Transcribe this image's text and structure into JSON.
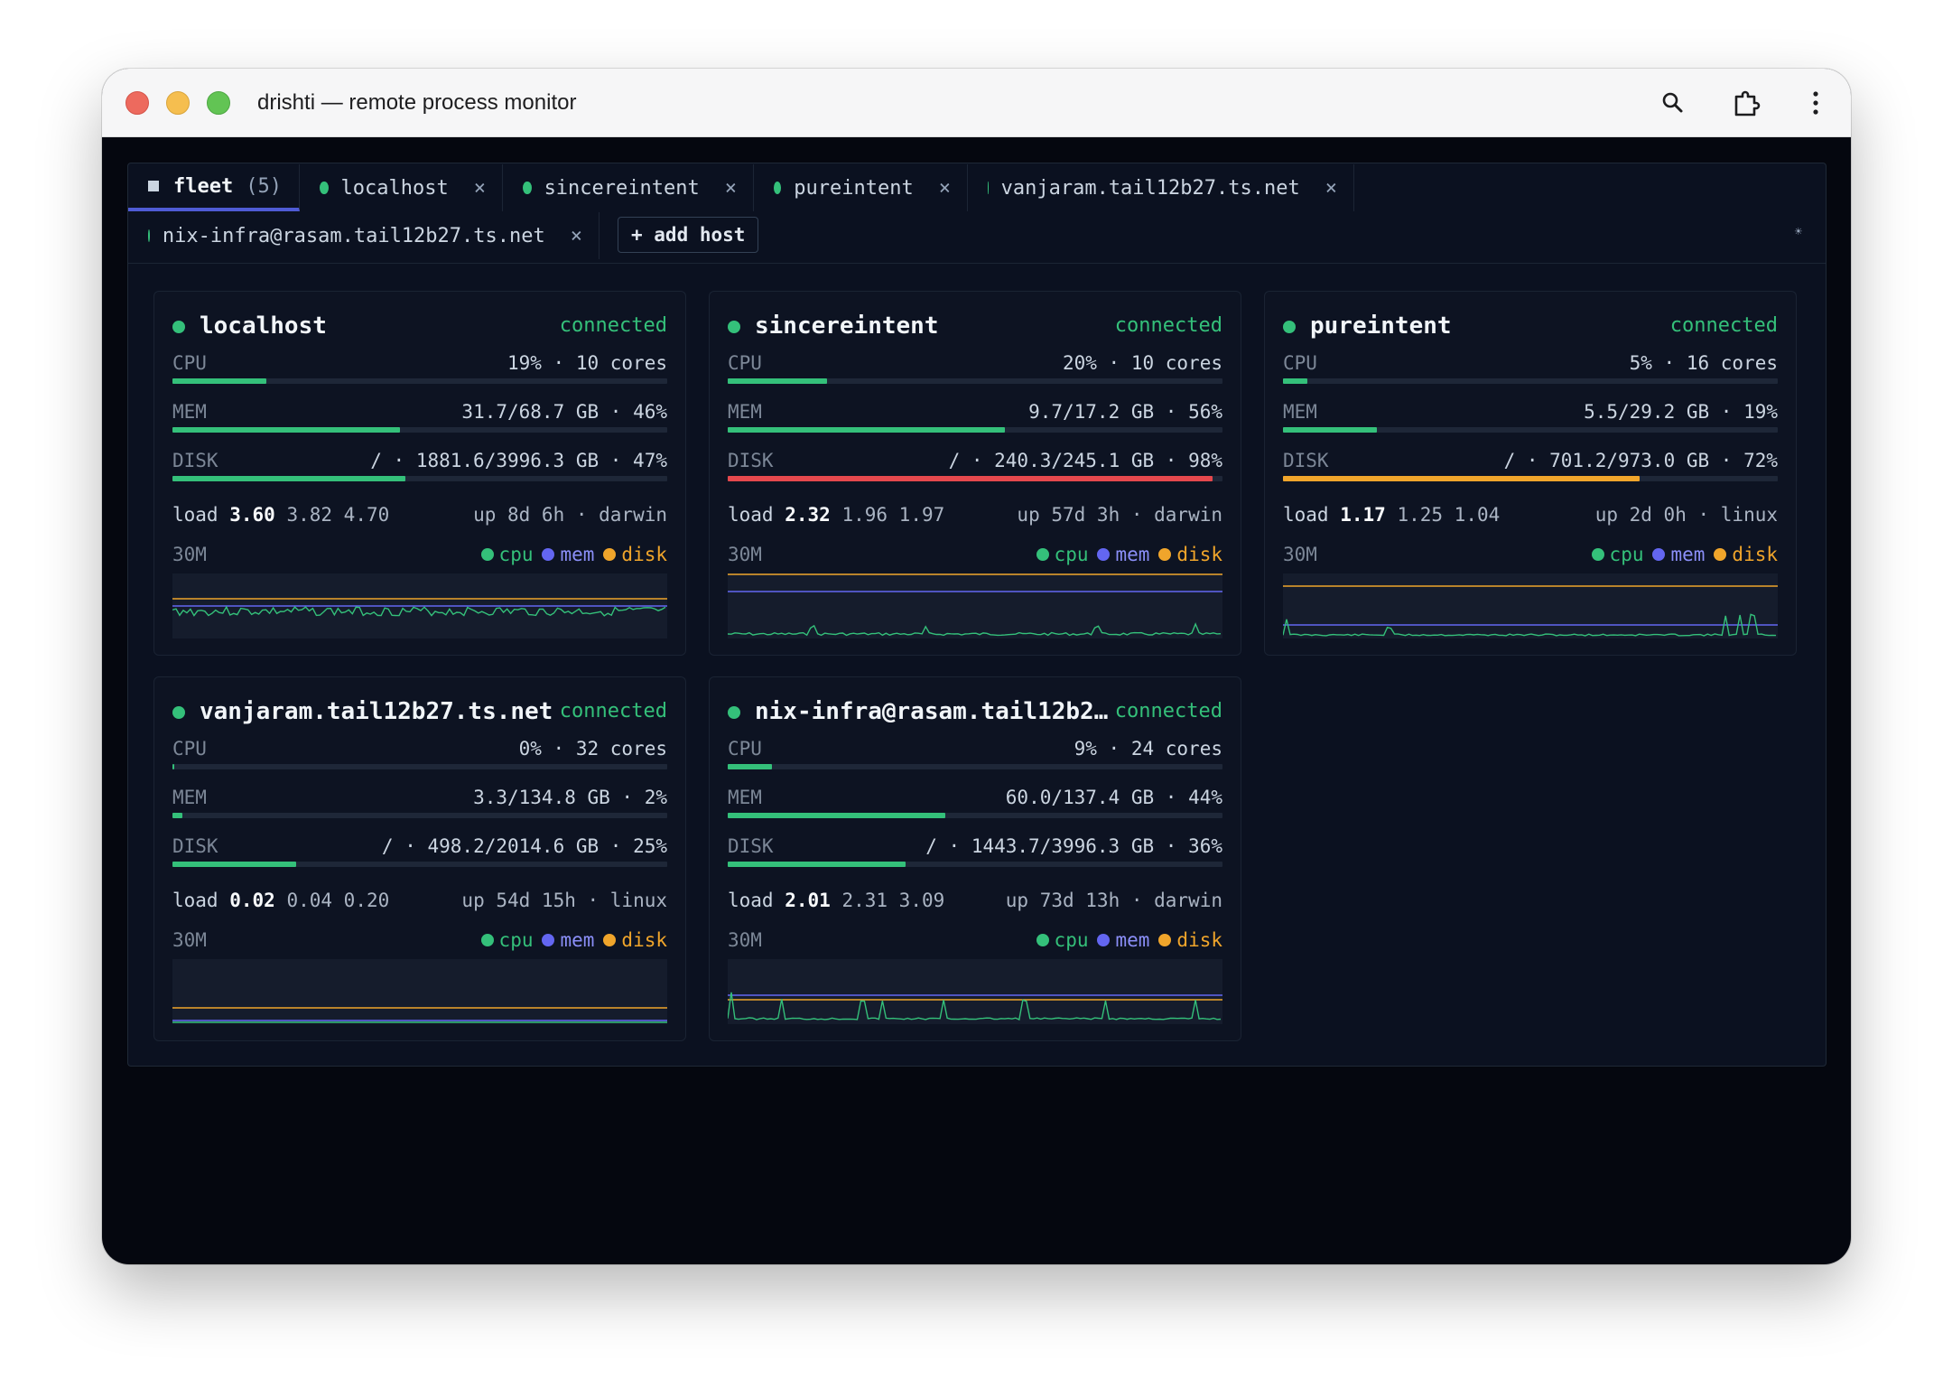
{
  "window": {
    "title": "drishti — remote process monitor"
  },
  "colors": {
    "ok": "#34c07a",
    "warn": "#f0a52b",
    "danger": "#e5484d",
    "cpu": "#34c07a",
    "mem": "#6366f1",
    "disk": "#f0a52b"
  },
  "tabs": {
    "fleet": {
      "label": "fleet",
      "count": "(5)"
    },
    "hosts": [
      {
        "label": "localhost",
        "close": "×"
      },
      {
        "label": "sincereintent",
        "close": "×"
      },
      {
        "label": "pureintent",
        "close": "×"
      },
      {
        "label": "vanjaram.tail12b27.ts.net",
        "close": "×"
      },
      {
        "label": "nix-infra@rasam.tail12b27.ts.net",
        "close": "×"
      }
    ],
    "add_host": "+ add host",
    "theme_icon": "☀"
  },
  "legend": {
    "cpu": "cpu",
    "mem": "mem",
    "disk": "disk"
  },
  "cards": [
    {
      "name": "localhost",
      "status": "connected",
      "cpu": {
        "label": "CPU",
        "value": "19% · 10 cores",
        "fraction": 0.19,
        "level": "ok"
      },
      "mem": {
        "label": "MEM",
        "value": "31.7/68.7 GB · 46%",
        "fraction": 0.46,
        "level": "ok"
      },
      "disk": {
        "label": "DISK",
        "value": "/ · 1881.6/3996.3 GB · 47%",
        "fraction": 0.47,
        "level": "ok"
      },
      "load_label": "load",
      "load1": "3.60",
      "load_rest": "3.82 4.70",
      "uptime": "up 8d 6h · darwin",
      "range": "30M"
    },
    {
      "name": "sincereintent",
      "status": "connected",
      "cpu": {
        "label": "CPU",
        "value": "20% · 10 cores",
        "fraction": 0.2,
        "level": "ok"
      },
      "mem": {
        "label": "MEM",
        "value": "9.7/17.2 GB · 56%",
        "fraction": 0.56,
        "level": "ok"
      },
      "disk": {
        "label": "DISK",
        "value": "/ · 240.3/245.1 GB · 98%",
        "fraction": 0.98,
        "level": "danger"
      },
      "load_label": "load",
      "load1": "2.32",
      "load_rest": "1.96 1.97",
      "uptime": "up 57d 3h · darwin",
      "range": "30M"
    },
    {
      "name": "pureintent",
      "status": "connected",
      "cpu": {
        "label": "CPU",
        "value": "5% · 16 cores",
        "fraction": 0.05,
        "level": "ok"
      },
      "mem": {
        "label": "MEM",
        "value": "5.5/29.2 GB · 19%",
        "fraction": 0.19,
        "level": "ok"
      },
      "disk": {
        "label": "DISK",
        "value": "/ · 701.2/973.0 GB · 72%",
        "fraction": 0.72,
        "level": "warn"
      },
      "load_label": "load",
      "load1": "1.17",
      "load_rest": "1.25 1.04",
      "uptime": "up 2d 0h · linux",
      "range": "30M"
    },
    {
      "name": "vanjaram.tail12b27.ts.net",
      "status": "connected",
      "cpu": {
        "label": "CPU",
        "value": "0% · 32 cores",
        "fraction": 0.0,
        "level": "ok"
      },
      "mem": {
        "label": "MEM",
        "value": "3.3/134.8 GB · 2%",
        "fraction": 0.02,
        "level": "ok"
      },
      "disk": {
        "label": "DISK",
        "value": "/ · 498.2/2014.6 GB · 25%",
        "fraction": 0.25,
        "level": "ok"
      },
      "load_label": "load",
      "load1": "0.02",
      "load_rest": "0.04 0.20",
      "uptime": "up 54d 15h · linux",
      "range": "30M"
    },
    {
      "name": "nix-infra@rasam.tail12b2…",
      "status": "connected",
      "cpu": {
        "label": "CPU",
        "value": "9% · 24 cores",
        "fraction": 0.09,
        "level": "ok"
      },
      "mem": {
        "label": "MEM",
        "value": "60.0/137.4 GB · 44%",
        "fraction": 0.44,
        "level": "ok"
      },
      "disk": {
        "label": "DISK",
        "value": "/ · 1443.7/3996.3 GB · 36%",
        "fraction": 0.36,
        "level": "ok"
      },
      "load_label": "load",
      "load1": "2.01",
      "load_rest": "2.31 3.09",
      "uptime": "up 73d 13h · darwin",
      "range": "30M"
    }
  ]
}
